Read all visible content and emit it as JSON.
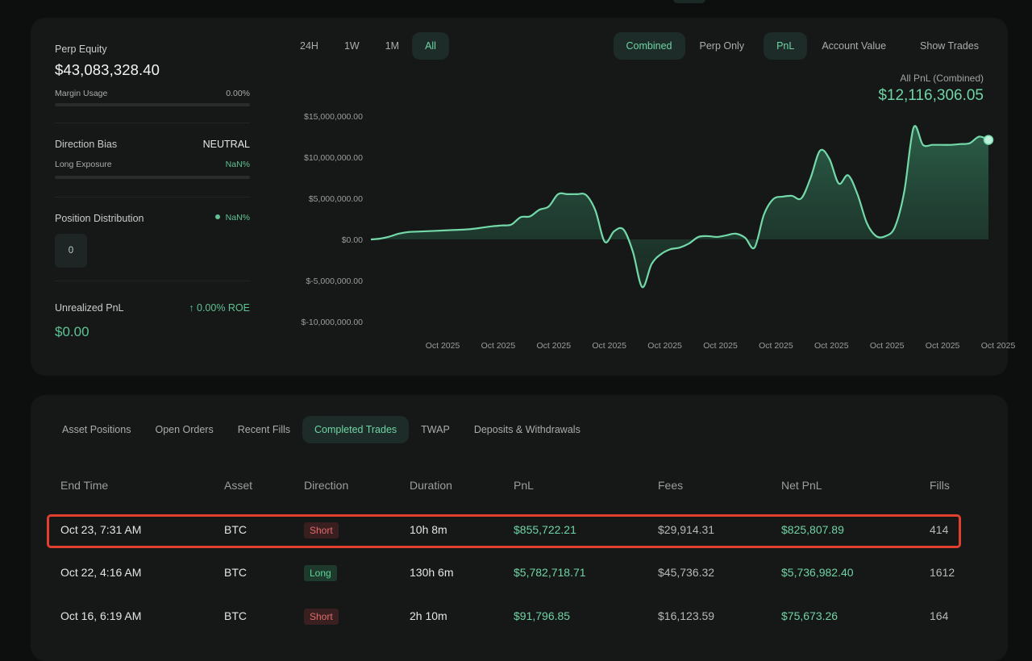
{
  "summary": {
    "perp_equity_label": "Perp Equity",
    "perp_equity_value": "$43,083,328.40",
    "margin_usage_label": "Margin Usage",
    "margin_usage_value": "0.00%",
    "direction_bias_label": "Direction Bias",
    "direction_bias_value": "NEUTRAL",
    "long_exposure_label": "Long Exposure",
    "long_exposure_value": "NaN%",
    "position_distribution_label": "Position Distribution",
    "position_distribution_value": "NaN%",
    "position_count": "0",
    "unrealized_pnl_label": "Unrealized PnL",
    "roe_value": "↑ 0.00% ROE",
    "unrealized_pnl_value": "$0.00"
  },
  "range_tabs": [
    "24H",
    "1W",
    "1M",
    "All"
  ],
  "range_active": "All",
  "view_tabs": {
    "combined": "Combined",
    "perp_only": "Perp Only",
    "pnl": "PnL",
    "account_value": "Account Value",
    "show_trades": "Show Trades"
  },
  "pnl_caption": "All PnL (Combined)",
  "pnl_total": "$12,116,306.05",
  "chart_data": {
    "type": "area",
    "y_ticks": [
      "$15,000,000.00",
      "$10,000,000.00",
      "$5,000,000.00",
      "$0.00",
      "$-5,000,000.00",
      "$-10,000,000.00"
    ],
    "x_ticks": [
      "Oct 2025",
      "Oct 2025",
      "Oct 2025",
      "Oct 2025",
      "Oct 2025",
      "Oct 2025",
      "Oct 2025",
      "Oct 2025",
      "Oct 2025",
      "Oct 2025",
      "Oct 2025"
    ],
    "ylim": [
      -10000000,
      15000000
    ],
    "y_values": [
      0,
      100000,
      350000,
      700000,
      900000,
      950000,
      1000000,
      1050000,
      1100000,
      1150000,
      1200000,
      1300000,
      1450000,
      1600000,
      1700000,
      1800000,
      2700000,
      2800000,
      3600000,
      4000000,
      5500000,
      5500000,
      5500000,
      5400000,
      3500000,
      -300000,
      1000000,
      1200000,
      -1500000,
      -5800000,
      -3000000,
      -1800000,
      -1200000,
      -1000000,
      -500000,
      300000,
      400000,
      300000,
      500000,
      700000,
      200000,
      -1000000,
      3000000,
      4900000,
      5200000,
      5300000,
      5000000,
      7500000,
      10800000,
      9800000,
      6800000,
      7800000,
      5500000,
      2000000,
      400000,
      400000,
      1500000,
      5800000,
      13600000,
      11500000,
      11500000,
      11500000,
      11500000,
      11600000,
      11700000,
      12500000,
      12100000
    ],
    "grid": false
  },
  "table_tabs": [
    "Asset Positions",
    "Open Orders",
    "Recent Fills",
    "Completed Trades",
    "TWAP",
    "Deposits & Withdrawals"
  ],
  "table_tab_active": "Completed Trades",
  "table_headers": [
    "End Time",
    "Asset",
    "Direction",
    "Duration",
    "PnL",
    "Fees",
    "Net PnL",
    "Fills"
  ],
  "trades": [
    {
      "end_time": "Oct 23, 7:31 AM",
      "asset": "BTC",
      "direction": "Short",
      "duration": "10h 8m",
      "pnl": "$855,722.21",
      "fees": "$29,914.31",
      "net_pnl": "$825,807.89",
      "fills": "414"
    },
    {
      "end_time": "Oct 22, 4:16 AM",
      "asset": "BTC",
      "direction": "Long",
      "duration": "130h 6m",
      "pnl": "$5,782,718.71",
      "fees": "$45,736.32",
      "net_pnl": "$5,736,982.40",
      "fills": "1612"
    },
    {
      "end_time": "Oct 16, 6:19 AM",
      "asset": "BTC",
      "direction": "Short",
      "duration": "2h 10m",
      "pnl": "$91,796.85",
      "fees": "$16,123.59",
      "net_pnl": "$75,673.26",
      "fills": "164"
    }
  ],
  "colors": {
    "accent": "#6fd4a5",
    "short": "#e16b6b",
    "long": "#5fd39a",
    "highlight_border": "#e2402f",
    "card": "#161717",
    "background": "#0d0e0e"
  }
}
